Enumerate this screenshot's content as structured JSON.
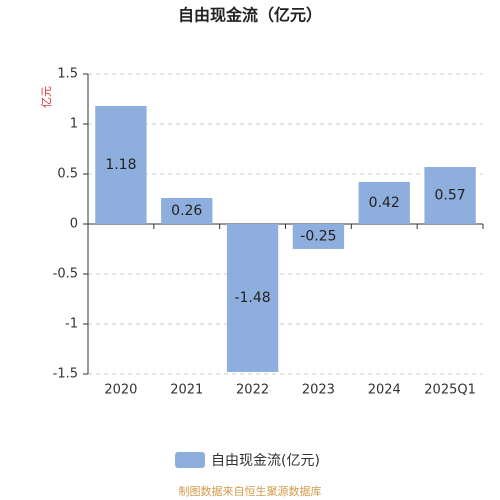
{
  "chart_data": {
    "type": "bar",
    "title": "自由现金流（亿元）",
    "y_label": "亿元",
    "categories": [
      "2020",
      "2021",
      "2022",
      "2023",
      "2024",
      "2025Q1"
    ],
    "series": [
      {
        "name": "自由现金流(亿元)",
        "color": "#8eaedd",
        "values": [
          1.18,
          0.26,
          -1.48,
          -0.25,
          0.42,
          0.57
        ]
      }
    ],
    "ylim": [
      -1.5,
      1.5
    ],
    "yticks": [
      -1.5,
      -1,
      -0.5,
      0,
      0.5,
      1,
      1.5
    ],
    "grid": true,
    "source": "制图数据来自恒生聚源数据库"
  }
}
